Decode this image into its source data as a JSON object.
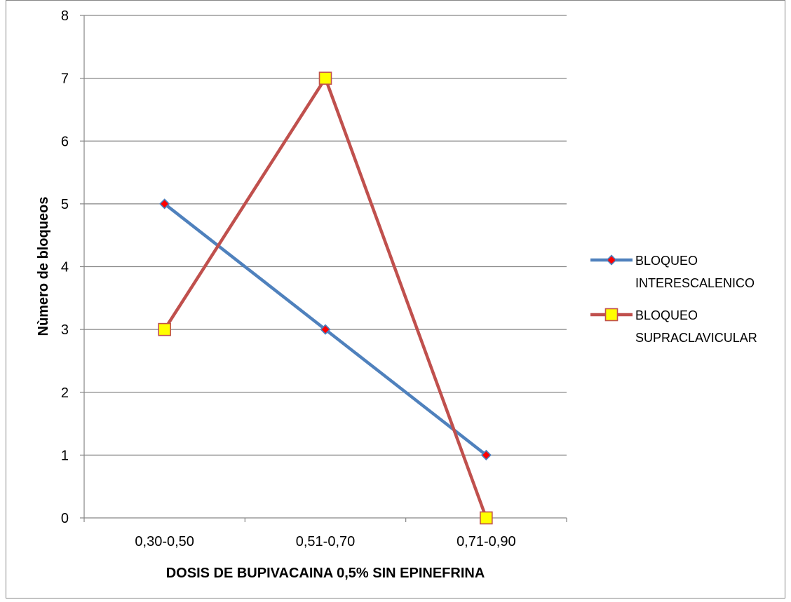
{
  "chart_data": {
    "type": "line",
    "title": "",
    "xlabel": "DOSIS DE BUPIVACAINA 0,5% SIN EPINEFRINA",
    "ylabel": "Nùmero de bloqueos",
    "categories": [
      "0,30-0,50",
      "0,51-0,70",
      "0,71-0,90"
    ],
    "ylim": [
      0,
      8
    ],
    "yticks": [
      0,
      1,
      2,
      3,
      4,
      5,
      6,
      7,
      8
    ],
    "grid": true,
    "legend_position": "right",
    "series": [
      {
        "name": "BLOQUEO INTERESCALENICO",
        "name_lines": [
          "BLOQUEO",
          "INTERESCALENICO"
        ],
        "values": [
          5,
          3,
          1
        ],
        "line_color": "#4F81BD",
        "marker": "diamond",
        "marker_fill": "#FF0000",
        "marker_stroke": "#4F81BD"
      },
      {
        "name": "BLOQUEO SUPRACLAVICULAR",
        "name_lines": [
          "BLOQUEO",
          "SUPRACLAVICULAR"
        ],
        "values": [
          3,
          7,
          0
        ],
        "line_color": "#C0504D",
        "marker": "square",
        "marker_fill": "#FFFF00",
        "marker_stroke": "#C0504D"
      }
    ]
  }
}
